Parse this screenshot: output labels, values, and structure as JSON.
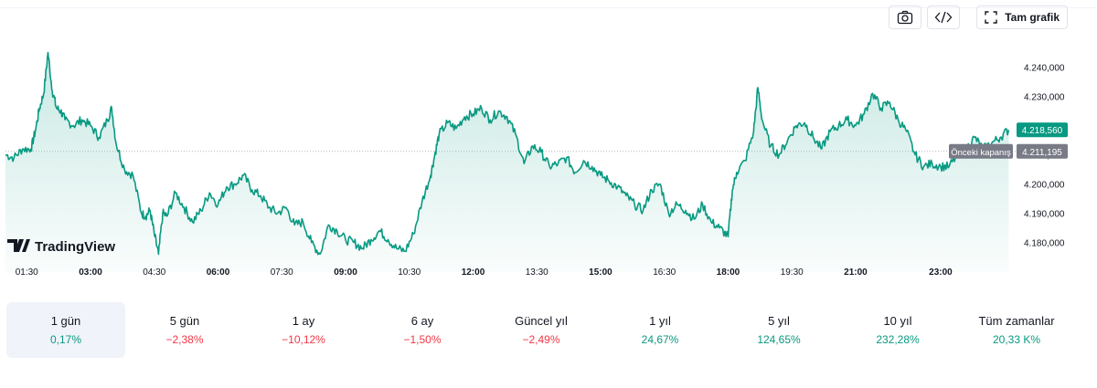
{
  "toolbar": {
    "screenshot_icon": "camera-icon",
    "embed_icon": "code-icon",
    "fullscreen_icon": "fullscreen-icon",
    "fullscreen_label": "Tam grafik"
  },
  "brand": {
    "logo_text": "TradingView"
  },
  "colors": {
    "line": "#089981",
    "fill_top": "#089981",
    "positive": "#089981",
    "negative": "#f23645",
    "prev_close_label": "#787b86"
  },
  "chart_data": {
    "type": "area",
    "title": "",
    "xlabel": "",
    "ylabel": "",
    "x_ticks": [
      {
        "label": "01:30",
        "bold": false
      },
      {
        "label": "03:00",
        "bold": true
      },
      {
        "label": "04:30",
        "bold": false
      },
      {
        "label": "06:00",
        "bold": true
      },
      {
        "label": "07:30",
        "bold": false
      },
      {
        "label": "09:00",
        "bold": true
      },
      {
        "label": "10:30",
        "bold": false
      },
      {
        "label": "12:00",
        "bold": true
      },
      {
        "label": "13:30",
        "bold": false
      },
      {
        "label": "15:00",
        "bold": true
      },
      {
        "label": "16:30",
        "bold": false
      },
      {
        "label": "18:00",
        "bold": true
      },
      {
        "label": "19:30",
        "bold": false
      },
      {
        "label": "21:00",
        "bold": true
      },
      {
        "label": "23:00",
        "bold": true
      }
    ],
    "y_ticks": [
      "4.240,000",
      "4.230,000",
      "4.220,000",
      "4.210,000",
      "4.200,000",
      "4.190,000",
      "4.180,000"
    ],
    "y_tick_values": [
      4240,
      4230,
      4220,
      4210,
      4200,
      4190,
      4180
    ],
    "ylim": [
      4173,
      4248
    ],
    "xlim": [
      1.0,
      24.7
    ],
    "last_price": {
      "label": "4.218,560",
      "value": 4218.56
    },
    "previous_close": {
      "label": "Önceki kapanış",
      "value_label": "4.211,195",
      "value": 4211.195
    },
    "series": [
      {
        "x": [
          1.0,
          1.2,
          1.4,
          1.6,
          1.7,
          1.8,
          1.9,
          2.0,
          2.1,
          2.2,
          2.3,
          2.4,
          2.6,
          2.8,
          3.0,
          3.2,
          3.4,
          3.5,
          3.6,
          3.8,
          4.0,
          4.2,
          4.3,
          4.4,
          4.5,
          4.6,
          4.7,
          4.8,
          5.0,
          5.2,
          5.4,
          5.6,
          5.8,
          6.0,
          6.2,
          6.4,
          6.6,
          6.8,
          7.0,
          7.2,
          7.4,
          7.6,
          7.8,
          8.0,
          8.2,
          8.4,
          8.6,
          8.8,
          9.0,
          9.2,
          9.4,
          9.6,
          9.8,
          10.0,
          10.2,
          10.4,
          10.6,
          10.8,
          11.0,
          11.1,
          11.2,
          11.4,
          11.6,
          11.8,
          12.0,
          12.2,
          12.4,
          12.6,
          12.8,
          13.0,
          13.2,
          13.4,
          13.6,
          13.8,
          14.0,
          14.2,
          14.4,
          14.6,
          14.8,
          15.0,
          15.2,
          15.4,
          15.6,
          15.8,
          16.0,
          16.2,
          16.4,
          16.6,
          16.8,
          17.0,
          17.2,
          17.4,
          17.6,
          17.8,
          18.0,
          18.1,
          18.2,
          18.4,
          18.6,
          18.7,
          18.8,
          19.0,
          19.2,
          19.4,
          19.6,
          19.8,
          20.0,
          20.2,
          20.4,
          20.6,
          20.8,
          21.0,
          21.2,
          21.4,
          21.6,
          21.8,
          22.0,
          22.2,
          22.4,
          22.6,
          22.8,
          23.0,
          23.2,
          23.4,
          23.6,
          23.8,
          24.0,
          24.2,
          24.4,
          24.6
        ],
        "values": [
          4210,
          4209,
          4212,
          4212,
          4218,
          4226,
          4231,
          4245,
          4232,
          4226,
          4225,
          4222,
          4220,
          4222,
          4220,
          4216,
          4222,
          4226,
          4214,
          4205,
          4203,
          4190,
          4189,
          4191,
          4183,
          4176,
          4190,
          4189,
          4197,
          4192,
          4187,
          4191,
          4197,
          4193,
          4199,
          4200,
          4203,
          4198,
          4196,
          4192,
          4190,
          4192,
          4186,
          4187,
          4180,
          4176,
          4186,
          4184,
          4181,
          4180,
          4178,
          4181,
          4184,
          4181,
          4178,
          4177,
          4183,
          4194,
          4203,
          4210,
          4217,
          4221,
          4219,
          4223,
          4224,
          4226,
          4222,
          4225,
          4223,
          4217,
          4207,
          4213,
          4211,
          4206,
          4207,
          4209,
          4204,
          4208,
          4206,
          4203,
          4201,
          4199,
          4196,
          4193,
          4191,
          4198,
          4200,
          4190,
          4193,
          4191,
          4188,
          4193,
          4187,
          4185,
          4182,
          4198,
          4204,
          4208,
          4218,
          4233,
          4222,
          4213,
          4210,
          4215,
          4220,
          4221,
          4216,
          4212,
          4218,
          4220,
          4222,
          4220,
          4224,
          4231,
          4226,
          4228,
          4222,
          4218,
          4210,
          4206,
          4207,
          4206,
          4206,
          4210,
          4212,
          4216,
          4212,
          4214,
          4216,
          4218.56
        ]
      }
    ],
    "grid": false,
    "legend": "none"
  },
  "ranges": [
    {
      "label": "1 gün",
      "value": "0,17%",
      "trend": "pos",
      "active": true
    },
    {
      "label": "5 gün",
      "value": "−2,38%",
      "trend": "neg",
      "active": false
    },
    {
      "label": "1 ay",
      "value": "−10,12%",
      "trend": "neg",
      "active": false
    },
    {
      "label": "6 ay",
      "value": "−1,50%",
      "trend": "neg",
      "active": false
    },
    {
      "label": "Güncel yıl",
      "value": "−2,49%",
      "trend": "neg",
      "active": false
    },
    {
      "label": "1 yıl",
      "value": "24,67%",
      "trend": "pos",
      "active": false
    },
    {
      "label": "5 yıl",
      "value": "124,65%",
      "trend": "pos",
      "active": false
    },
    {
      "label": "10 yıl",
      "value": "232,28%",
      "trend": "pos",
      "active": false
    },
    {
      "label": "Tüm zamanlar",
      "value": "20,33 K%",
      "trend": "pos",
      "active": false
    }
  ]
}
